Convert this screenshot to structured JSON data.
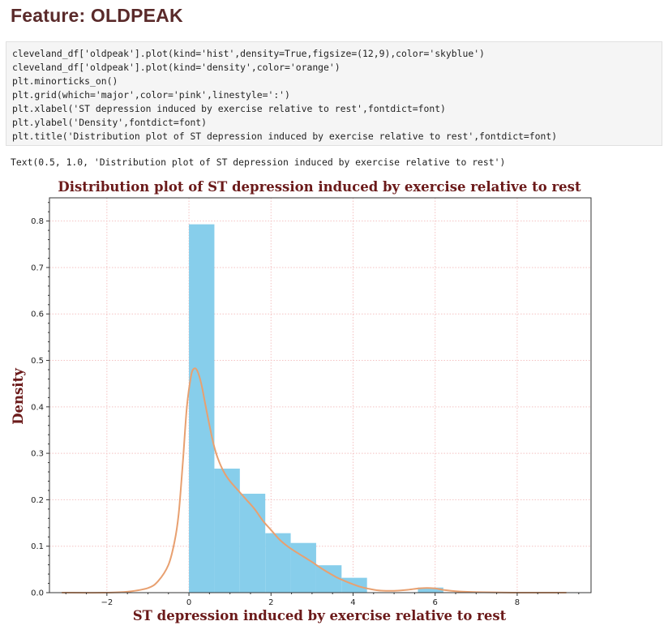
{
  "heading": "Feature: OLDPEAK",
  "code_lines": [
    "cleveland_df['oldpeak'].plot(kind='hist',density=True,figsize=(12,9),color='skyblue')",
    "cleveland_df['oldpeak'].plot(kind='density',color='orange')",
    "plt.minorticks_on()",
    "plt.grid(which='major',color='pink',linestyle=':')",
    "plt.xlabel('ST depression induced by exercise relative to rest',fontdict=font)",
    "plt.ylabel('Density',fontdict=font)",
    "plt.title('Distribution plot of ST depression induced by exercise relative to rest',fontdict=font)"
  ],
  "output_text": "Text(0.5, 1.0, 'Distribution plot of ST depression induced by exercise relative to rest')",
  "chart_data": {
    "type": "bar",
    "title": "Distribution plot of ST depression induced by exercise relative to rest",
    "xlabel": "ST depression induced by exercise relative to rest",
    "ylabel": "Density",
    "xlim": [
      -3.4,
      9.8
    ],
    "ylim": [
      0,
      0.85
    ],
    "xticks": [
      -2,
      0,
      2,
      4,
      6,
      8
    ],
    "yticks": [
      0.0,
      0.1,
      0.2,
      0.3,
      0.4,
      0.5,
      0.6,
      0.7,
      0.8
    ],
    "grid": true,
    "grid_color": "#f4c2c2",
    "histogram": {
      "color": "#87ceeb",
      "bins": [
        {
          "x0": 0.0,
          "x1": 0.62,
          "density": 0.793
        },
        {
          "x0": 0.62,
          "x1": 1.24,
          "density": 0.267
        },
        {
          "x0": 1.24,
          "x1": 1.86,
          "density": 0.213
        },
        {
          "x0": 1.86,
          "x1": 2.48,
          "density": 0.128
        },
        {
          "x0": 2.48,
          "x1": 3.1,
          "density": 0.107
        },
        {
          "x0": 3.1,
          "x1": 3.72,
          "density": 0.059
        },
        {
          "x0": 3.72,
          "x1": 4.34,
          "density": 0.032
        },
        {
          "x0": 4.34,
          "x1": 4.96,
          "density": 0.0
        },
        {
          "x0": 4.96,
          "x1": 5.58,
          "density": 0.0
        },
        {
          "x0": 5.58,
          "x1": 6.2,
          "density": 0.011
        }
      ]
    },
    "density_curve": {
      "color": "#e8a070",
      "x": [
        -3.1,
        -2.0,
        -1.5,
        -1.0,
        -0.75,
        -0.5,
        -0.35,
        -0.25,
        -0.15,
        -0.05,
        0.05,
        0.12,
        0.2,
        0.3,
        0.4,
        0.5,
        0.6,
        0.7,
        0.85,
        1.0,
        1.2,
        1.4,
        1.6,
        1.8,
        2.0,
        2.2,
        2.4,
        2.6,
        2.8,
        3.0,
        3.2,
        3.4,
        3.6,
        3.8,
        4.0,
        4.2,
        4.4,
        4.6,
        4.8,
        5.0,
        5.3,
        5.6,
        5.8,
        6.0,
        6.2,
        6.5,
        7.0,
        8.0,
        9.2
      ],
      "y": [
        0.0,
        0.0,
        0.002,
        0.01,
        0.025,
        0.06,
        0.11,
        0.17,
        0.28,
        0.4,
        0.466,
        0.482,
        0.478,
        0.45,
        0.405,
        0.36,
        0.32,
        0.29,
        0.26,
        0.24,
        0.22,
        0.2,
        0.18,
        0.155,
        0.135,
        0.115,
        0.1,
        0.088,
        0.077,
        0.066,
        0.054,
        0.043,
        0.033,
        0.025,
        0.018,
        0.012,
        0.008,
        0.005,
        0.004,
        0.004,
        0.006,
        0.009,
        0.01,
        0.009,
        0.006,
        0.003,
        0.001,
        0.0,
        0.0
      ]
    }
  }
}
